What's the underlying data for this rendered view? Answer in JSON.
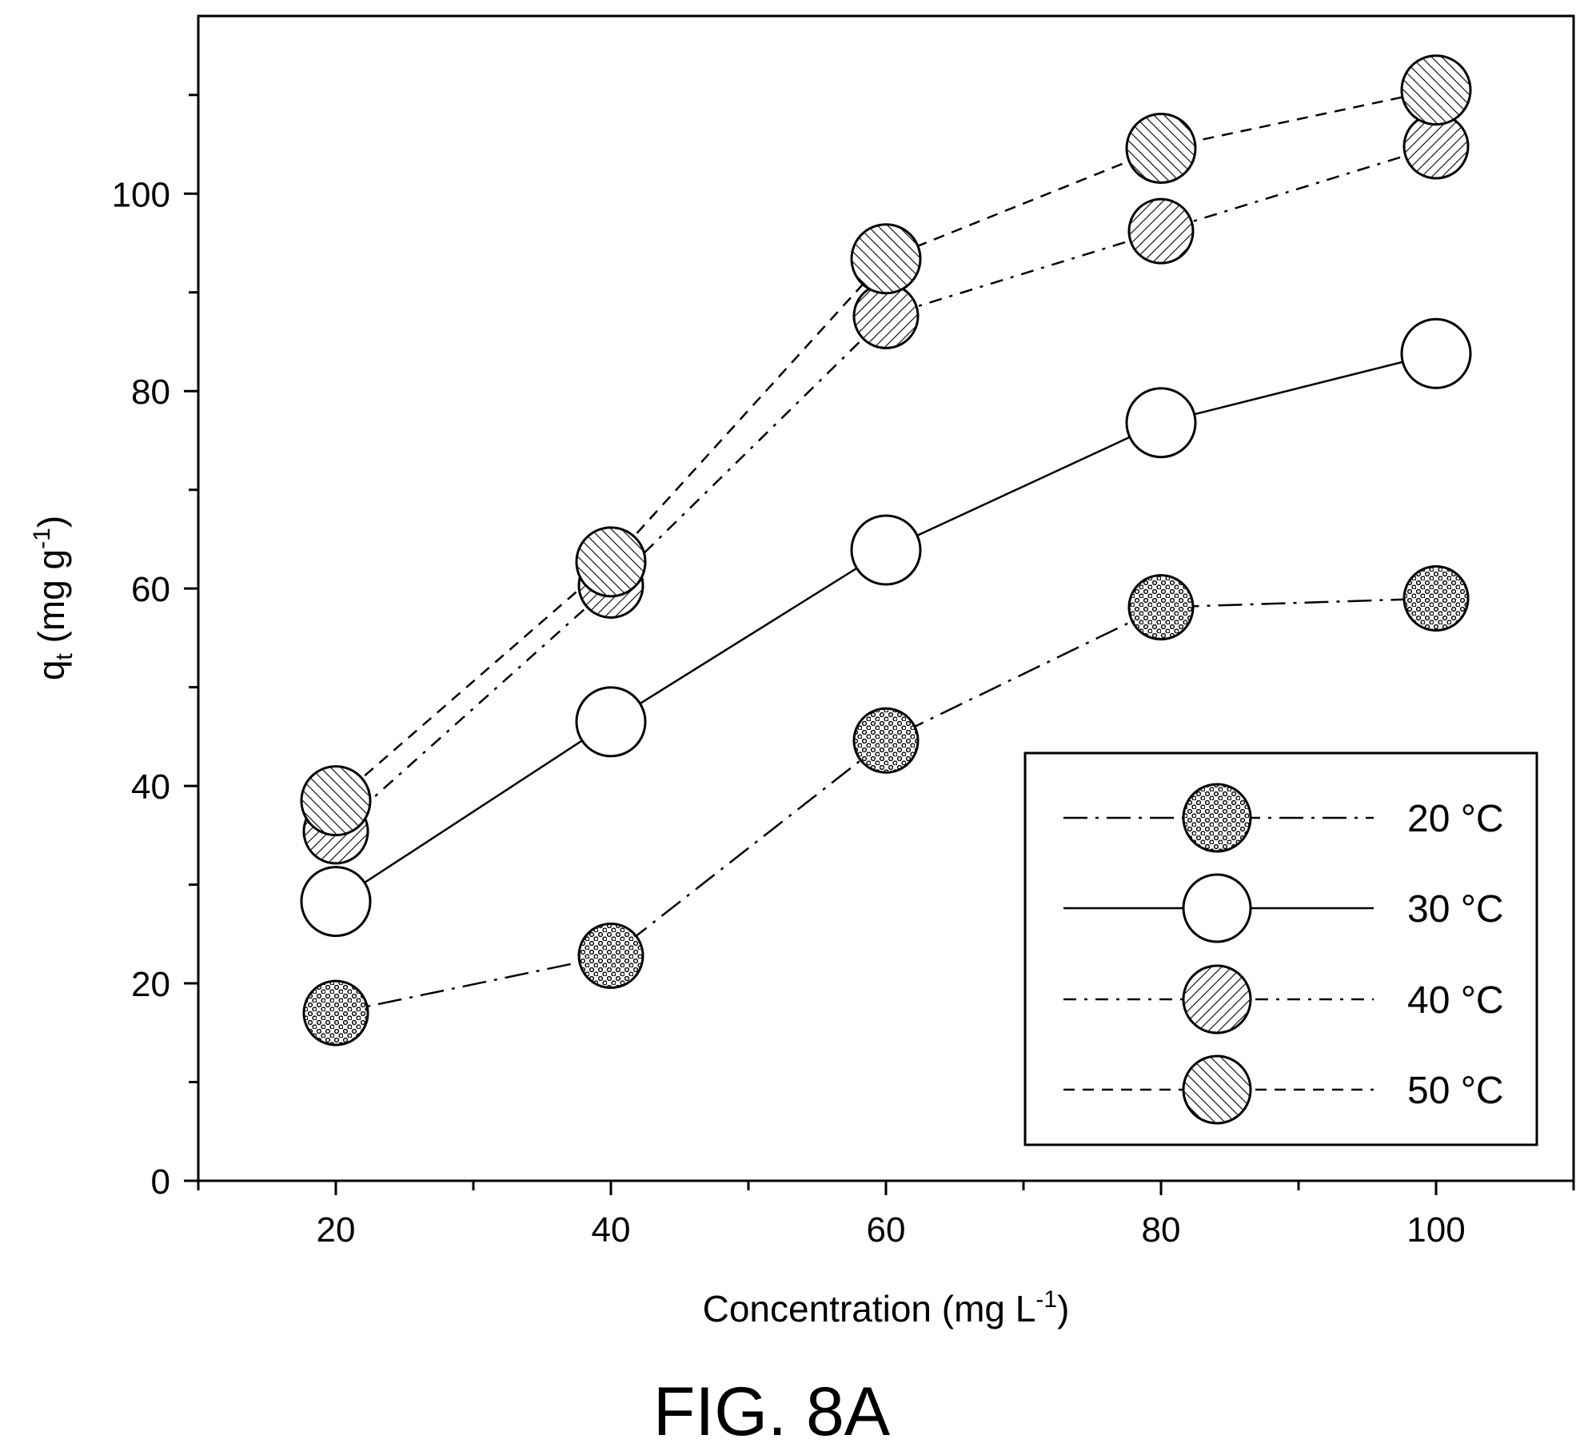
{
  "figure_label": "FIG. 8A",
  "chart_data": {
    "type": "line",
    "title": "",
    "xlabel": "Concentration (mg L",
    "xlabel_sup": "-1",
    "xlabel_end": ")",
    "ylabel_base": "q",
    "ylabel_sub": "t",
    "ylabel_mid": " (mg g",
    "ylabel_sup": "-1",
    "ylabel_end": ")",
    "xlim": [
      10,
      110
    ],
    "ylim": [
      0,
      118
    ],
    "xticks": [
      20,
      40,
      60,
      80,
      100
    ],
    "x_minor_ticks": [
      10,
      30,
      50,
      70,
      90,
      110
    ],
    "yticks": [
      0,
      20,
      40,
      60,
      80,
      100
    ],
    "y_minor_ticks": [
      10,
      30,
      50,
      70,
      90,
      110
    ],
    "grid": false,
    "legend_position": "bottom-right",
    "x": [
      20,
      40,
      60,
      80,
      100
    ],
    "series": [
      {
        "name": "20 °C",
        "values": [
          17.0,
          22.8,
          44.6,
          58.1,
          59.0
        ],
        "marker": "dots",
        "line": "dash-dot-long"
      },
      {
        "name": "30 °C",
        "values": [
          28.3,
          46.5,
          63.9,
          76.8,
          83.8
        ],
        "marker": "open",
        "line": "solid"
      },
      {
        "name": "40 °C",
        "values": [
          35.4,
          60.3,
          87.6,
          96.2,
          104.8
        ],
        "marker": "hatch-back",
        "line": "dash-dot"
      },
      {
        "name": "50 °C",
        "values": [
          38.5,
          62.7,
          93.4,
          104.6,
          110.5
        ],
        "marker": "hatch-forward",
        "line": "dashed"
      }
    ]
  }
}
